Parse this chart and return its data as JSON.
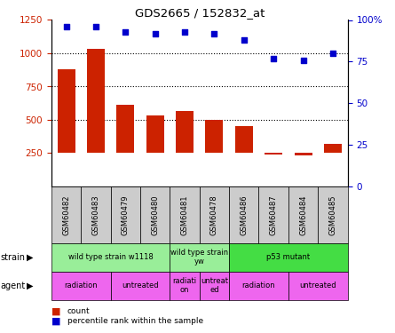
{
  "title": "GDS2665 / 152832_at",
  "samples": [
    "GSM60482",
    "GSM60483",
    "GSM60479",
    "GSM60480",
    "GSM60481",
    "GSM60478",
    "GSM60486",
    "GSM60487",
    "GSM60484",
    "GSM60485"
  ],
  "counts": [
    880,
    1030,
    610,
    530,
    565,
    500,
    450,
    240,
    235,
    320
  ],
  "percentiles": [
    96,
    96,
    93,
    92,
    93,
    92,
    88,
    77,
    76,
    80
  ],
  "ylim_left": [
    0,
    1250
  ],
  "ylim_right": [
    0,
    100
  ],
  "yticks_left": [
    250,
    500,
    750,
    1000,
    1250
  ],
  "yticks_right": [
    0,
    25,
    50,
    75,
    100
  ],
  "bar_color": "#cc2200",
  "dot_color": "#0000cc",
  "bar_bottom": 250,
  "strain_groups": [
    {
      "text": "wild type strain w1118",
      "start": 0,
      "end": 4,
      "color": "#99ee99"
    },
    {
      "text": "wild type strain\nyw",
      "start": 4,
      "end": 6,
      "color": "#99ee99"
    },
    {
      "text": "p53 mutant",
      "start": 6,
      "end": 10,
      "color": "#44dd44"
    }
  ],
  "agent_groups": [
    {
      "text": "radiation",
      "start": 0,
      "end": 2,
      "color": "#ee66ee"
    },
    {
      "text": "untreated",
      "start": 2,
      "end": 4,
      "color": "#ee66ee"
    },
    {
      "text": "radiati\non",
      "start": 4,
      "end": 5,
      "color": "#ee66ee"
    },
    {
      "text": "untreat\ned",
      "start": 5,
      "end": 6,
      "color": "#ee66ee"
    },
    {
      "text": "radiation",
      "start": 6,
      "end": 8,
      "color": "#ee66ee"
    },
    {
      "text": "untreated",
      "start": 8,
      "end": 10,
      "color": "#ee66ee"
    }
  ],
  "tick_color_left": "#cc2200",
  "tick_color_right": "#0000cc",
  "legend_count_color": "#cc2200",
  "legend_dot_color": "#0000cc",
  "sample_box_color": "#cccccc",
  "grid_style": ":"
}
